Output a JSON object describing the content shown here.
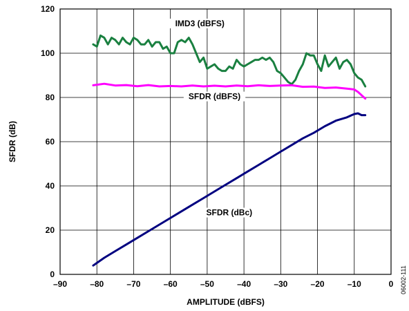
{
  "chart_data": {
    "type": "line",
    "xlabel": "AMPLITUDE (dBFS)",
    "ylabel": "SFDR (dB)",
    "xlim": [
      -90,
      0
    ],
    "ylim": [
      0,
      120
    ],
    "x_ticks": [
      "–90",
      "–80",
      "–70",
      "–60",
      "–50",
      "–40",
      "–30",
      "–20",
      "–10",
      "0"
    ],
    "y_ticks": [
      "0",
      "20",
      "40",
      "60",
      "80",
      "100",
      "120"
    ],
    "grid": true,
    "figure_id": "06002-111",
    "series": [
      {
        "name": "IMD3 (dBFS)",
        "color": "#1a8040",
        "x": [
          -81,
          -80,
          -79,
          -78,
          -77,
          -76,
          -75,
          -74,
          -73,
          -72,
          -71,
          -70,
          -69,
          -68,
          -67,
          -66,
          -65,
          -64,
          -63,
          -62,
          -61,
          -60,
          -59,
          -58,
          -57,
          -56,
          -55,
          -54,
          -53,
          -52,
          -51,
          -50,
          -49,
          -48,
          -47,
          -46,
          -45,
          -44,
          -43,
          -42,
          -41,
          -40,
          -39,
          -38,
          -37,
          -36,
          -35,
          -34,
          -33,
          -32,
          -31,
          -30,
          -29,
          -28,
          -27,
          -26,
          -25,
          -24,
          -23,
          -22,
          -21,
          -20,
          -19,
          -18,
          -17,
          -16,
          -15,
          -14,
          -13,
          -12,
          -11,
          -10,
          -9,
          -8,
          -7
        ],
        "y": [
          104,
          103,
          108,
          107,
          104,
          107,
          106,
          104,
          107,
          105,
          104,
          107,
          106,
          104,
          104,
          106,
          103,
          105,
          105,
          102,
          103,
          100,
          100,
          105,
          106,
          105,
          107,
          104,
          100,
          96,
          98,
          93,
          94,
          95,
          93,
          92,
          92,
          94,
          93,
          97,
          95,
          94,
          95,
          96,
          97,
          97,
          98,
          97,
          98,
          96,
          92,
          91,
          89,
          87,
          86,
          88,
          92,
          95,
          100,
          99,
          99,
          95,
          92,
          99,
          94,
          96,
          98,
          93,
          96,
          97,
          95,
          91,
          89,
          88,
          85
        ]
      },
      {
        "name": "SFDR (dBFS)",
        "color": "#ff00ff",
        "x": [
          -81,
          -78,
          -75,
          -72,
          -69,
          -66,
          -63,
          -60,
          -57,
          -54,
          -51,
          -48,
          -45,
          -42,
          -39,
          -36,
          -33,
          -30,
          -27,
          -24,
          -21,
          -18,
          -15,
          -12,
          -10,
          -9,
          -8,
          -7
        ],
        "y": [
          85.5,
          86.2,
          85.4,
          85.6,
          85.1,
          85.6,
          85.0,
          85.2,
          85.0,
          85.4,
          85.0,
          85.3,
          85.0,
          85.4,
          85.1,
          85.5,
          85.2,
          85.4,
          85.5,
          84.8,
          84.9,
          84.3,
          84.5,
          84.0,
          83.6,
          82.5,
          81.0,
          79.5
        ]
      },
      {
        "name": "SFDR (dBc)",
        "color": "#000080",
        "x": [
          -81,
          -78,
          -75,
          -72,
          -69,
          -66,
          -63,
          -60,
          -57,
          -54,
          -51,
          -48,
          -45,
          -42,
          -39,
          -36,
          -33,
          -30,
          -27,
          -24,
          -21,
          -18,
          -15,
          -12,
          -10,
          -9,
          -8,
          -7
        ],
        "y": [
          4,
          7.5,
          10.5,
          13.5,
          16.5,
          19.5,
          22.5,
          25.5,
          28.5,
          31.5,
          34.5,
          37.5,
          40.5,
          43.5,
          46.5,
          49.5,
          52.5,
          55.5,
          58.5,
          61.5,
          64,
          67,
          69.5,
          71,
          72.5,
          72.8,
          72,
          72
        ]
      }
    ]
  }
}
